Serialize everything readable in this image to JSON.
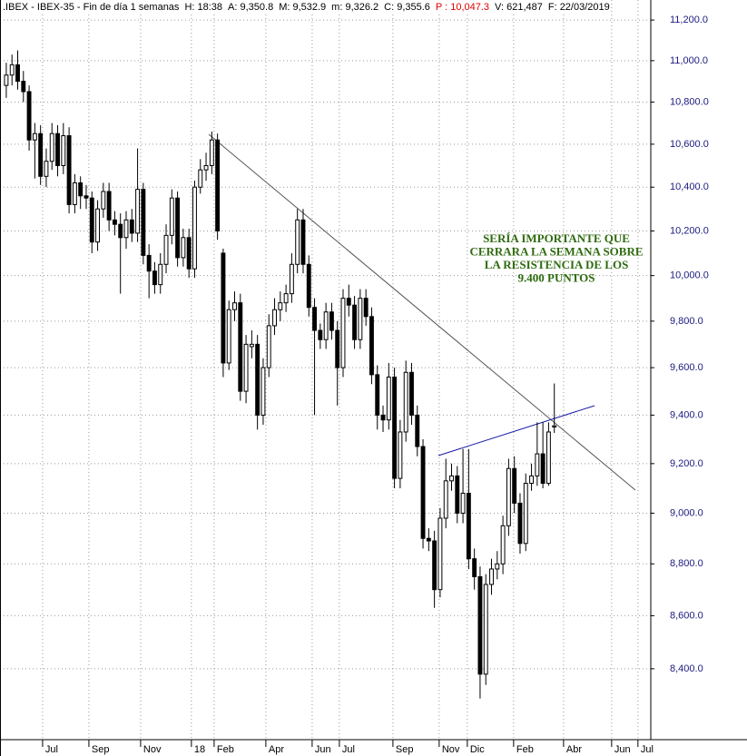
{
  "chart_data": {
    "type": "candlestick",
    "title": ".IBEX - IBEX-35 - Fin de día 1 semanas",
    "header_fields": [
      {
        "text": "H: 18:38"
      },
      {
        "text": "A: 9,350.8"
      },
      {
        "text": "M: 9,532.9"
      },
      {
        "text": "m: 9,326.2"
      },
      {
        "text": "C: 9,355.6"
      },
      {
        "text": "P : 10,047.3",
        "color": "#e00000"
      },
      {
        "text": "V: 621,487"
      },
      {
        "text": "F: 22/03/2019"
      }
    ],
    "annotation": [
      "SERÍA IMPORTANTE QUE",
      "CERRARA LA SEMANA SOBRE",
      "LA RESISTENCIA DE LOS",
      "9.400 PUNTOS"
    ],
    "log_scale": true,
    "grid": true,
    "ylim": [
      8140,
      11300
    ],
    "yticks": [
      {
        "value": 8400,
        "label": "8,400.0"
      },
      {
        "value": 8600,
        "label": "8,600.0"
      },
      {
        "value": 8800,
        "label": "8,800.0"
      },
      {
        "value": 9000,
        "label": "9,000.0"
      },
      {
        "value": 9200,
        "label": "9,200.0"
      },
      {
        "value": 9400,
        "label": "9,400.0"
      },
      {
        "value": 9600,
        "label": "9,600.0"
      },
      {
        "value": 9800,
        "label": "9,800.0"
      },
      {
        "value": 10000,
        "label": "10,000.0"
      },
      {
        "value": 10200,
        "label": "10,200.0"
      },
      {
        "value": 10400,
        "label": "10,400.0"
      },
      {
        "value": 10600,
        "label": "10,600.0"
      },
      {
        "value": 10800,
        "label": "10,800.0"
      },
      {
        "value": 11000,
        "label": "11,000.0"
      },
      {
        "value": 11200,
        "label": "11,200.0"
      }
    ],
    "xlim": [
      -1.1,
      112.9
    ],
    "xticks": [
      {
        "value": 6.36,
        "label": "Jul"
      },
      {
        "value": 14.47,
        "label": "Sep"
      },
      {
        "value": 23.53,
        "label": "Nov"
      },
      {
        "value": 32.43,
        "label": "18"
      },
      {
        "value": 36.41,
        "label": "Feb"
      },
      {
        "value": 45.47,
        "label": "Apr"
      },
      {
        "value": 53.58,
        "label": "Jun"
      },
      {
        "value": 58.35,
        "label": "Jul"
      },
      {
        "value": 67.73,
        "label": "Sep"
      },
      {
        "value": 75.83,
        "label": "Nov"
      },
      {
        "value": 80.76,
        "label": "Dic"
      },
      {
        "value": 88.87,
        "label": "Feb"
      },
      {
        "value": 97.62,
        "label": "Abr"
      },
      {
        "value": 106.04,
        "label": "Jun"
      },
      {
        "value": 110.65,
        "label": "Jul"
      }
    ],
    "open": [
      10880,
      10930,
      10980,
      10900,
      10850,
      10620,
      10650,
      10450,
      10520,
      10650,
      10500,
      10640,
      10320,
      10420,
      10360,
      10350,
      10150,
      10300,
      10380,
      10250,
      10230,
      10170,
      10250,
      10190,
      10390,
      10090,
      10020,
      9960,
      10050,
      10180,
      10350,
      10080,
      10170,
      10030,
      10400,
      10480,
      10500,
      10620,
      10100,
      9620,
      9850,
      9880,
      9500,
      9690,
      9700,
      9400,
      9600,
      9780,
      9850,
      9880,
      9920,
      10050,
      10250,
      10050,
      9860,
      9760,
      9720,
      9840,
      9760,
      9600,
      9900,
      9870,
      9720,
      9900,
      9820,
      9570,
      9400,
      9380,
      9560,
      9140,
      9330,
      9580,
      9400,
      9270,
      8900,
      8890,
      8700,
      8980,
      9130,
      9150,
      9000,
      9080,
      8820,
      8750,
      8380,
      8720,
      8780,
      8800,
      8950,
      9180,
      9040,
      8880,
      9120,
      9150,
      9240,
      9120,
      9350.8
    ],
    "high": [
      10990,
      11030,
      11050,
      10950,
      10880,
      10700,
      10690,
      10580,
      10700,
      10690,
      10700,
      10680,
      10460,
      10450,
      10410,
      10380,
      10340,
      10420,
      10420,
      10290,
      10280,
      10290,
      10300,
      10580,
      10420,
      10140,
      10060,
      10100,
      10230,
      10390,
      10380,
      10210,
      10210,
      10430,
      10530,
      10560,
      10660,
      10650,
      10120,
      9890,
      9930,
      9920,
      9740,
      9760,
      9740,
      9640,
      9830,
      9900,
      9930,
      9960,
      10100,
      10300,
      10300,
      10090,
      9900,
      9790,
      9880,
      9880,
      9800,
      9940,
      9960,
      9910,
      9940,
      9940,
      9860,
      9610,
      9440,
      9620,
      9600,
      9380,
      9630,
      9620,
      9440,
      9300,
      8940,
      8930,
      9020,
      9220,
      9200,
      9190,
      9260,
      9260,
      8860,
      8790,
      8760,
      8820,
      8850,
      8990,
      9220,
      9230,
      9080,
      9160,
      9200,
      9370,
      9370,
      9370,
      9532.9
    ],
    "low": [
      10820,
      10880,
      10860,
      10800,
      10570,
      10440,
      10410,
      10400,
      10480,
      10450,
      10460,
      10280,
      10280,
      10300,
      10300,
      10100,
      10110,
      10260,
      10200,
      10180,
      9920,
      10120,
      10150,
      10150,
      10050,
      9900,
      9920,
      9920,
      10010,
      10140,
      10040,
      10040,
      9990,
      9990,
      10370,
      10430,
      10460,
      10160,
      9560,
      9590,
      9800,
      9460,
      9450,
      9640,
      9340,
      9360,
      9560,
      9740,
      9800,
      9840,
      9880,
      10010,
      10010,
      9820,
      9400,
      9680,
      9680,
      9720,
      9440,
      9560,
      9820,
      9680,
      9680,
      9780,
      9530,
      9340,
      9330,
      9340,
      9100,
      9100,
      9290,
      9360,
      9230,
      8860,
      8850,
      8630,
      8670,
      8940,
      9090,
      8960,
      8960,
      8780,
      8700,
      8290,
      8340,
      8680,
      8740,
      8760,
      8910,
      9000,
      8840,
      8850,
      9090,
      9110,
      9100,
      9110,
      9326.2
    ],
    "close": [
      10930,
      10980,
      10900,
      10850,
      10620,
      10650,
      10450,
      10520,
      10650,
      10500,
      10640,
      10320,
      10420,
      10360,
      10350,
      10150,
      10300,
      10380,
      10250,
      10230,
      10170,
      10250,
      10190,
      10390,
      10090,
      10020,
      9960,
      10050,
      10180,
      10350,
      10080,
      10170,
      10030,
      10400,
      10480,
      10500,
      10620,
      10200,
      9620,
      9850,
      9880,
      9500,
      9700,
      9700,
      9400,
      9600,
      9780,
      9850,
      9880,
      9920,
      10050,
      10250,
      10050,
      9860,
      9760,
      9720,
      9840,
      9760,
      9600,
      9900,
      9870,
      9720,
      9900,
      9820,
      9570,
      9400,
      9380,
      9560,
      9140,
      9330,
      9580,
      9400,
      9270,
      8900,
      8890,
      8700,
      8980,
      9130,
      9150,
      9000,
      9080,
      8820,
      8750,
      8380,
      8720,
      8780,
      8800,
      8950,
      9180,
      9040,
      8880,
      9120,
      9150,
      9240,
      9120,
      9330,
      9355.6
    ],
    "up_color": "#ffffff",
    "down_color": "#000000"
  }
}
